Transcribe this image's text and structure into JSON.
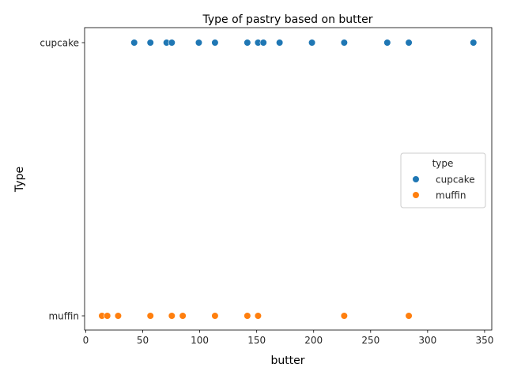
{
  "chart_data": {
    "type": "scatter",
    "title": "Type of pastry based on butter",
    "xlabel": "butter",
    "ylabel": "Type",
    "xlim": [
      0,
      355
    ],
    "x_ticks": [
      0,
      50,
      100,
      150,
      200,
      250,
      300,
      350
    ],
    "categories": [
      "cupcake",
      "muffin"
    ],
    "grid": false,
    "legend": {
      "title": "type",
      "placement": "center-right"
    },
    "series": [
      {
        "name": "cupcake",
        "color": "#1f77b4",
        "x": [
          42.5,
          56.7,
          70.9,
          75.5,
          99.2,
          113.4,
          141.8,
          151.2,
          155.9,
          170.1,
          198.5,
          226.8,
          264.6,
          283.5,
          340.2
        ],
        "y": [
          "cupcake",
          "cupcake",
          "cupcake",
          "cupcake",
          "cupcake",
          "cupcake",
          "cupcake",
          "cupcake",
          "cupcake",
          "cupcake",
          "cupcake",
          "cupcake",
          "cupcake",
          "cupcake",
          "cupcake"
        ]
      },
      {
        "name": "muffin",
        "color": "#ff7f0e",
        "x": [
          14.2,
          18.9,
          28.4,
          56.7,
          75.5,
          85.1,
          113.4,
          141.8,
          151.2,
          226.8,
          283.5
        ],
        "y": [
          "muffin",
          "muffin",
          "muffin",
          "muffin",
          "muffin",
          "muffin",
          "muffin",
          "muffin",
          "muffin",
          "muffin",
          "muffin"
        ]
      }
    ]
  }
}
